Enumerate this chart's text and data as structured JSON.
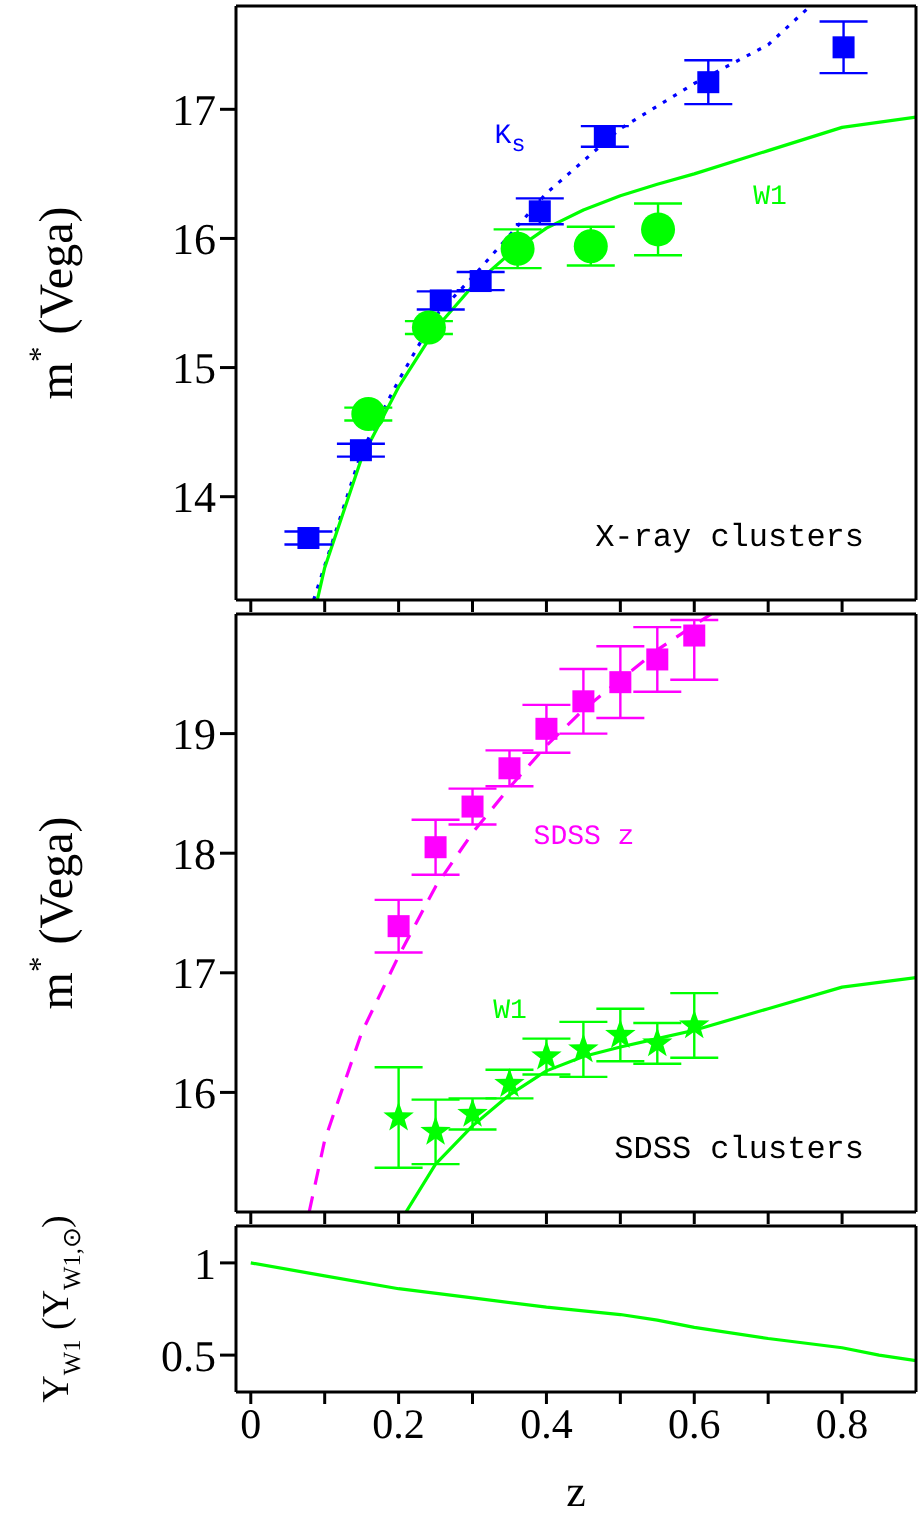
{
  "chart_data": [
    {
      "type": "scatter",
      "ylabel": "m$^{*}$ (Vega)",
      "xlim": [
        -0.02,
        0.9
      ],
      "ylim": [
        13.2,
        17.8
      ],
      "yticks": [
        14,
        15,
        16,
        17
      ],
      "xticks": [
        0,
        {
          "value": 0.1,
          "label": null
        },
        0.2,
        {
          "value": 0.3,
          "label": null
        },
        0.4,
        {
          "value": 0.5,
          "label": null
        },
        0.6,
        {
          "value": 0.7,
          "label": null
        },
        0.8
      ],
      "tick_labels": "y",
      "annotations": [
        "X-ray clusters"
      ],
      "series": [
        {
          "type": "line",
          "name": "K$_{s}$",
          "color": "#0000ff",
          "line_style": "dotted",
          "marker": "none",
          "x": [
            0.085,
            0.15,
            0.2,
            0.25,
            0.3,
            0.4,
            0.5,
            0.6,
            0.7,
            0.757
          ],
          "values": [
            13.2,
            14.35,
            14.9,
            15.4,
            15.7,
            16.35,
            16.85,
            17.2,
            17.5,
            17.8
          ]
        },
        {
          "type": "line",
          "name": "W1",
          "color": "#00ff00",
          "line_style": "solid",
          "marker": "none",
          "x": [
            0.09,
            0.1,
            0.15,
            0.2,
            0.25,
            0.3,
            0.35,
            0.4,
            0.45,
            0.5,
            0.55,
            0.6,
            0.7,
            0.8,
            0.9
          ],
          "values": [
            13.2,
            13.45,
            14.3,
            14.85,
            15.3,
            15.63,
            15.88,
            16.08,
            16.22,
            16.33,
            16.42,
            16.5,
            16.68,
            16.86,
            16.94
          ]
        },
        {
          "color": "#0000ff",
          "marker": "square",
          "x": [
            0.078,
            0.149,
            0.257,
            0.311,
            0.391,
            0.479,
            0.619,
            0.802
          ],
          "values": [
            13.68,
            14.36,
            15.52,
            15.67,
            16.21,
            16.79,
            17.21,
            17.48
          ],
          "errors": [
            0.05,
            0.05,
            0.07,
            0.07,
            0.1,
            0.08,
            0.17,
            0.2
          ]
        },
        {
          "color": "#00ff00",
          "marker": "circle",
          "x": [
            0.159,
            0.241,
            0.361,
            0.46,
            0.551
          ],
          "values": [
            14.64,
            15.31,
            15.92,
            15.94,
            16.07
          ],
          "errors": [
            0.05,
            0.05,
            0.15,
            0.15,
            0.2
          ]
        }
      ]
    },
    {
      "type": "scatter",
      "ylabel": "m$^{*}$ (Vega)",
      "xlim": [
        -0.02,
        0.9
      ],
      "ylim": [
        15,
        20
      ],
      "yticks": [
        16,
        17,
        18,
        19
      ],
      "xticks": [
        0,
        {
          "value": 0.1,
          "label": null
        },
        0.2,
        {
          "value": 0.3,
          "label": null
        },
        0.4,
        {
          "value": 0.5,
          "label": null
        },
        0.6,
        {
          "value": 0.7,
          "label": null
        },
        0.8
      ],
      "tick_labels": "y",
      "annotations": [
        "SDSS clusters"
      ],
      "series": [
        {
          "type": "line",
          "name": "SDSS z",
          "color": "#ff00ff",
          "line_style": "dashed",
          "marker": "none",
          "x": [
            0.079,
            0.1,
            0.15,
            0.2,
            0.25,
            0.3,
            0.35,
            0.4,
            0.45,
            0.5,
            0.55,
            0.623
          ],
          "values": [
            15,
            15.6,
            16.5,
            17.14,
            17.72,
            18.17,
            18.55,
            18.9,
            19.2,
            19.45,
            19.7,
            20
          ]
        },
        {
          "type": "line",
          "name": "W1",
          "color": "#00ff00",
          "line_style": "solid",
          "marker": "none",
          "x": [
            0.21,
            0.25,
            0.3,
            0.35,
            0.4,
            0.45,
            0.5,
            0.55,
            0.6,
            0.7,
            0.8,
            0.9
          ],
          "values": [
            15.0,
            15.4,
            15.72,
            15.98,
            16.18,
            16.3,
            16.38,
            16.45,
            16.52,
            16.7,
            16.88,
            16.96
          ]
        },
        {
          "color": "#ff00ff",
          "marker": "square",
          "x": [
            0.2,
            0.25,
            0.3,
            0.35,
            0.4,
            0.45,
            0.5,
            0.55,
            0.6
          ],
          "values": [
            17.39,
            18.05,
            18.39,
            18.71,
            19.04,
            19.27,
            19.43,
            19.62,
            19.82
          ],
          "errors": [
            0.22,
            0.23,
            0.15,
            0.15,
            0.2,
            0.27,
            0.3,
            0.27,
            [
              19.45,
              19.95
            ]
          ]
        },
        {
          "color": "#00ff00",
          "marker": "star",
          "x": [
            0.2,
            0.25,
            0.3,
            0.35,
            0.4,
            0.45,
            0.5,
            0.55,
            0.6
          ],
          "values": [
            15.79,
            15.67,
            15.82,
            16.07,
            16.3,
            16.36,
            16.48,
            16.41,
            16.56
          ],
          "errors": [
            0.42,
            0.27,
            0.13,
            0.12,
            0.15,
            0.23,
            0.22,
            0.17,
            0.27
          ]
        }
      ]
    },
    {
      "type": "line",
      "ylabel": "Υ$_{W1}$ (Υ$_{W1,⊙}$)",
      "xlabel": "z",
      "xlim": [
        -0.02,
        0.9
      ],
      "ylim": [
        0.3,
        1.2
      ],
      "yticks": [
        0.5,
        1
      ],
      "xticks": [
        0,
        {
          "value": 0.1,
          "label": null
        },
        0.2,
        {
          "value": 0.3,
          "label": null
        },
        0.4,
        {
          "value": 0.5,
          "label": null
        },
        0.6,
        {
          "value": 0.7,
          "label": null
        },
        0.8
      ],
      "series": [
        {
          "color": "#00ff00",
          "line_style": "solid",
          "marker": "none",
          "x": [
            0,
            0.1,
            0.2,
            0.3,
            0.4,
            0.5,
            0.55,
            0.6,
            0.7,
            0.8,
            0.85,
            0.9
          ],
          "values": [
            1.0,
            0.93,
            0.86,
            0.81,
            0.76,
            0.72,
            0.69,
            0.65,
            0.59,
            0.54,
            0.5,
            0.47
          ]
        }
      ]
    }
  ]
}
